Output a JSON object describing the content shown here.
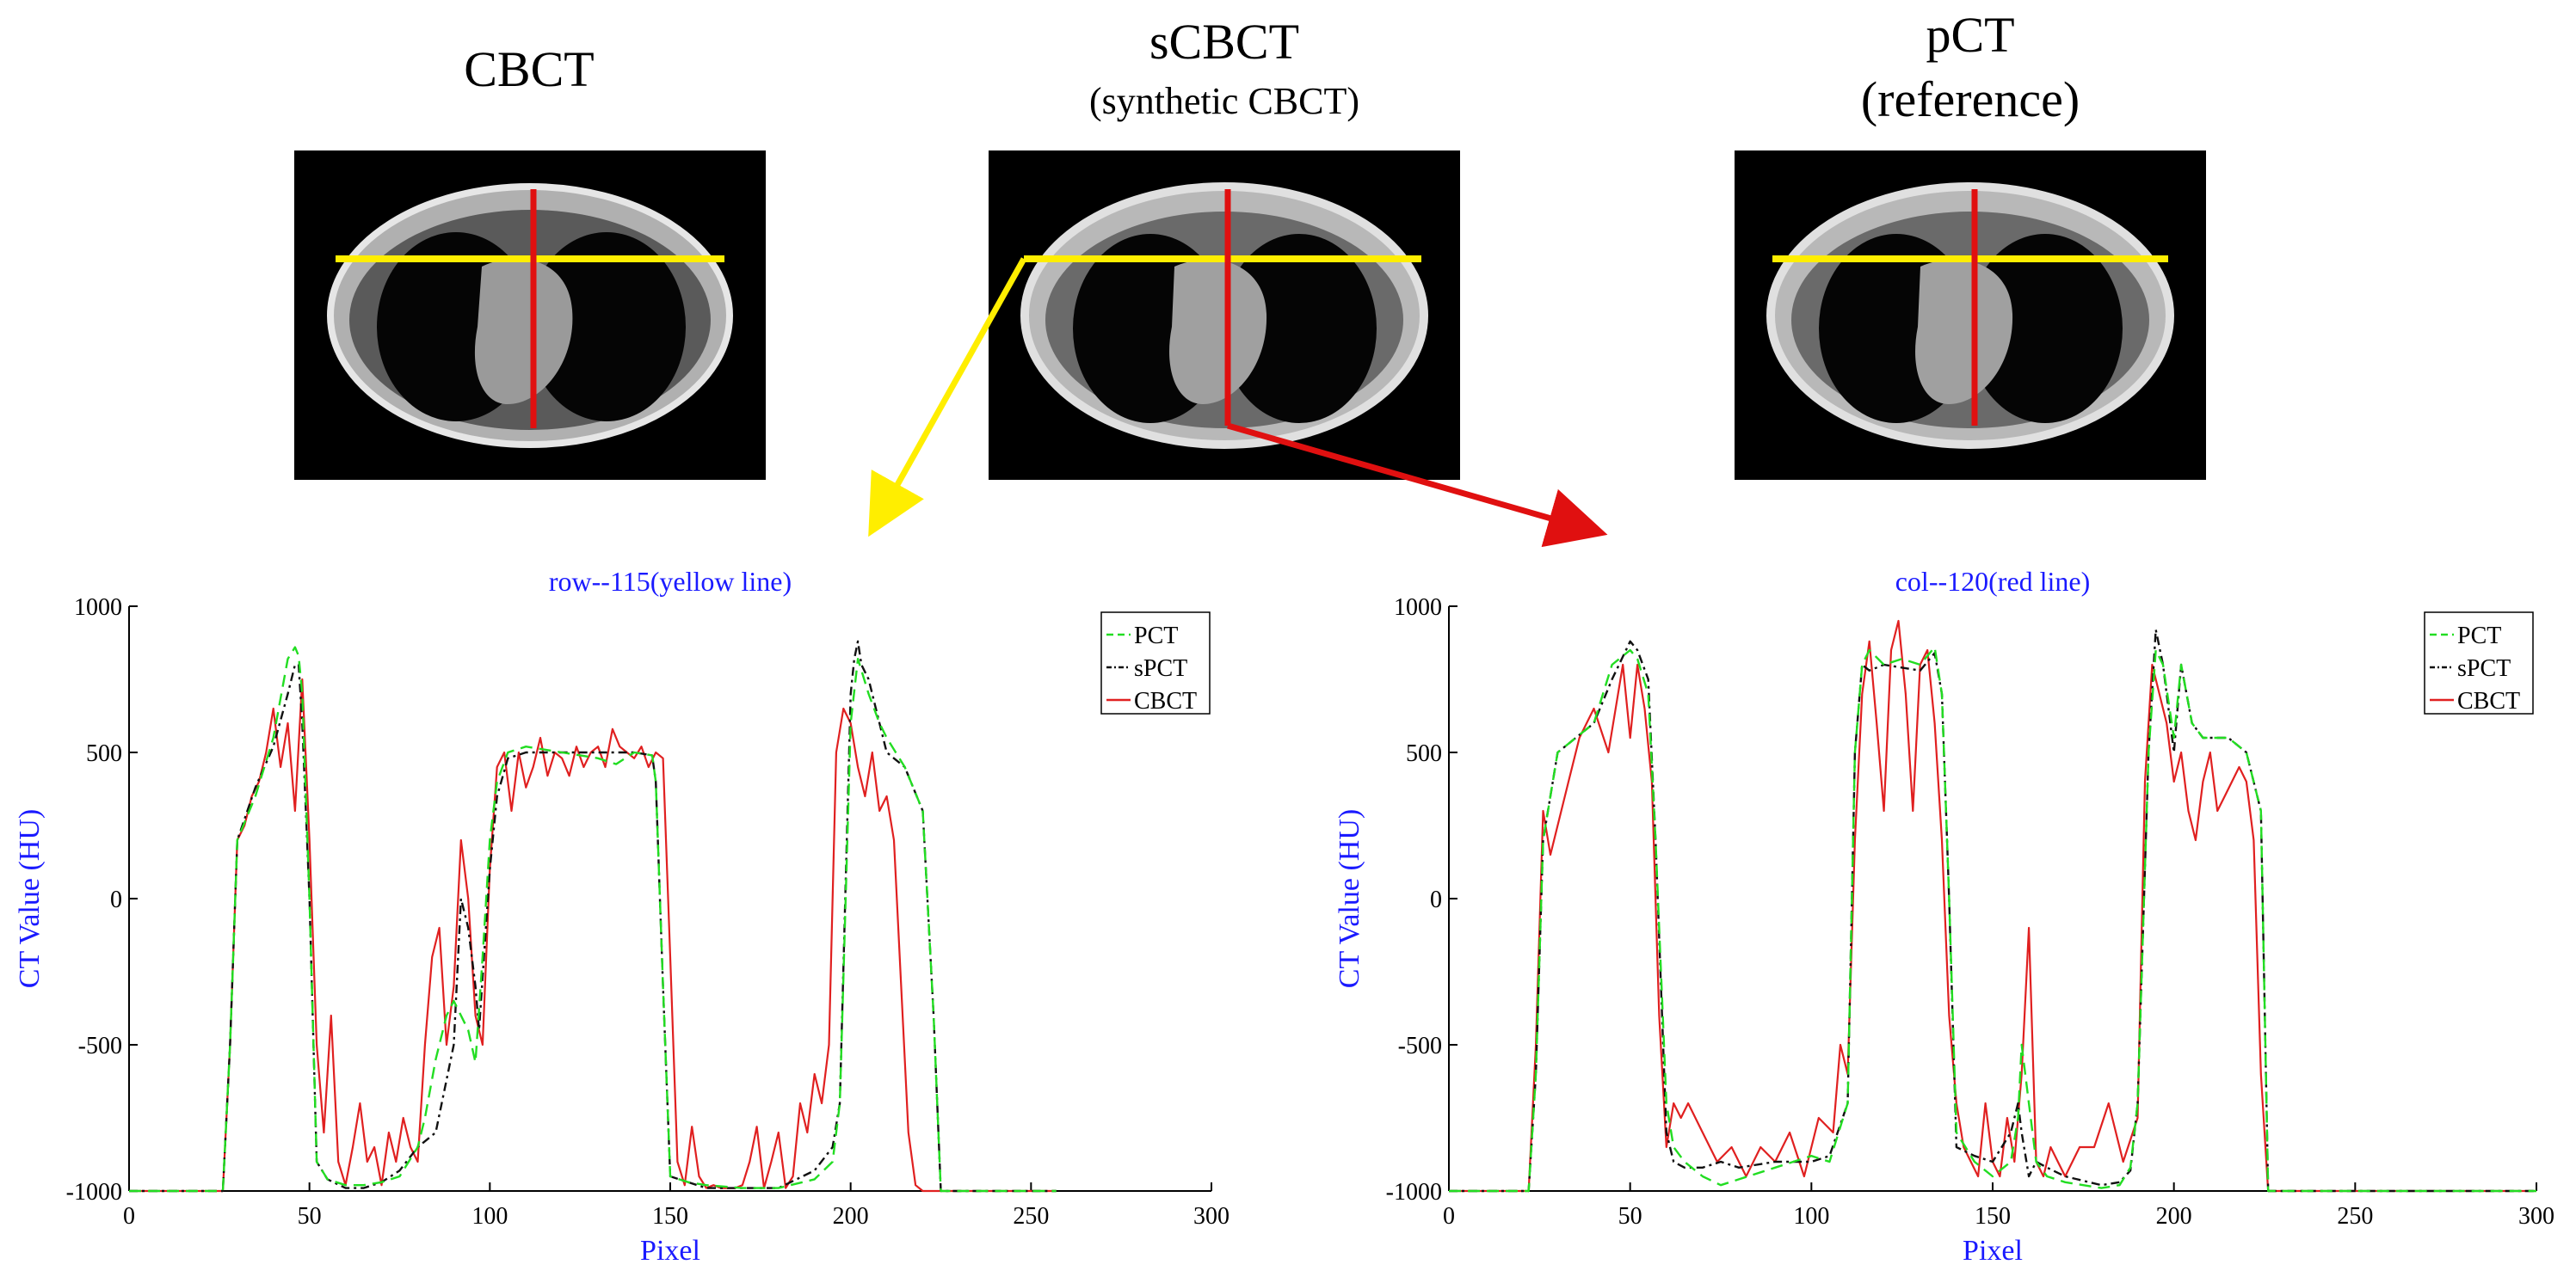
{
  "colors": {
    "axis": "#000000",
    "axis_label": "#1a1aff",
    "title": "#1a1aff",
    "pct": "#22dd22",
    "spct": "#111111",
    "cbct": "#e02020",
    "yellow_line": "#ffee00",
    "red_line": "#e01010"
  },
  "images": {
    "cbct": {
      "title": "CBCT",
      "subtitle": ""
    },
    "scbct": {
      "title": "sCBCT",
      "subtitle": "(synthetic CBCT)"
    },
    "pct": {
      "title": "pCT",
      "subtitle": "(reference)"
    }
  },
  "chart_data": [
    {
      "type": "line",
      "title": "row--115(yellow line)",
      "xlabel": "Pixel",
      "ylabel": "CT Value (HU)",
      "xlim": [
        0,
        300
      ],
      "ylim": [
        -1000,
        1000
      ],
      "xticks": [
        "0",
        "50",
        "100",
        "150",
        "200",
        "250",
        "300"
      ],
      "yticks": [
        "-1000",
        "-500",
        "0",
        "500",
        "1000"
      ],
      "legend": [
        "PCT",
        "sPCT",
        "CBCT"
      ],
      "legend_placement": "top-right",
      "series": [
        {
          "name": "PCT",
          "x": [
            0,
            26,
            28,
            30,
            35,
            40,
            44,
            46,
            47,
            48,
            50,
            52,
            55,
            60,
            65,
            70,
            75,
            80,
            82,
            85,
            88,
            90,
            94,
            96,
            98,
            100,
            102,
            105,
            110,
            120,
            130,
            135,
            140,
            145,
            146,
            148,
            150,
            155,
            160,
            170,
            180,
            190,
            195,
            197,
            200,
            202,
            205,
            208,
            210,
            215,
            220,
            223,
            225,
            230,
            257
          ],
          "y": [
            -1000,
            -1000,
            -500,
            200,
            350,
            550,
            820,
            860,
            830,
            700,
            0,
            -900,
            -960,
            -980,
            -980,
            -970,
            -950,
            -850,
            -750,
            -550,
            -400,
            -350,
            -450,
            -560,
            -200,
            200,
            400,
            500,
            520,
            500,
            480,
            460,
            500,
            490,
            400,
            -300,
            -950,
            -970,
            -980,
            -990,
            -990,
            -960,
            -900,
            -700,
            600,
            820,
            700,
            600,
            550,
            450,
            300,
            -400,
            -1000,
            -1000,
            -1000
          ]
        },
        {
          "name": "sPCT",
          "x": [
            0,
            26,
            28,
            30,
            35,
            40,
            44,
            46,
            47,
            48,
            50,
            52,
            55,
            60,
            65,
            70,
            75,
            80,
            85,
            90,
            92,
            94,
            96,
            97,
            100,
            102,
            105,
            110,
            120,
            130,
            140,
            145,
            146,
            148,
            150,
            155,
            160,
            170,
            180,
            190,
            195,
            197,
            200,
            201,
            202,
            203,
            205,
            208,
            210,
            215,
            220,
            223,
            225,
            230,
            257
          ],
          "y": [
            -1000,
            -1000,
            -500,
            200,
            380,
            520,
            700,
            800,
            800,
            600,
            0,
            -900,
            -960,
            -990,
            -990,
            -970,
            -930,
            -850,
            -800,
            -500,
            0,
            -100,
            -300,
            -450,
            100,
            350,
            480,
            500,
            500,
            500,
            500,
            490,
            400,
            -300,
            -950,
            -970,
            -990,
            -990,
            -990,
            -930,
            -850,
            -700,
            700,
            820,
            880,
            800,
            750,
            600,
            500,
            450,
            300,
            -400,
            -1000,
            -1000,
            -1000
          ]
        },
        {
          "name": "CBCT",
          "x": [
            0,
            26,
            28,
            30,
            32,
            34,
            36,
            38,
            40,
            42,
            44,
            46,
            48,
            50,
            52,
            54,
            56,
            58,
            60,
            62,
            64,
            66,
            68,
            70,
            72,
            74,
            76,
            78,
            80,
            82,
            84,
            86,
            88,
            90,
            92,
            94,
            96,
            98,
            100,
            102,
            104,
            106,
            108,
            110,
            112,
            114,
            116,
            118,
            120,
            122,
            124,
            126,
            128,
            130,
            132,
            134,
            136,
            138,
            140,
            142,
            144,
            146,
            148,
            150,
            152,
            154,
            156,
            158,
            160,
            162,
            164,
            166,
            168,
            170,
            172,
            174,
            176,
            178,
            180,
            182,
            184,
            186,
            188,
            190,
            192,
            194,
            196,
            198,
            200,
            202,
            204,
            206,
            208,
            210,
            212,
            214,
            216,
            218,
            220,
            222,
            224,
            226,
            230,
            257
          ],
          "y": [
            -1000,
            -1000,
            -500,
            200,
            250,
            350,
            400,
            500,
            650,
            450,
            600,
            300,
            750,
            200,
            -500,
            -800,
            -400,
            -900,
            -980,
            -850,
            -700,
            -900,
            -850,
            -980,
            -800,
            -900,
            -750,
            -850,
            -900,
            -500,
            -200,
            -100,
            -500,
            -300,
            200,
            0,
            -400,
            -500,
            100,
            450,
            500,
            300,
            500,
            380,
            450,
            550,
            420,
            500,
            480,
            420,
            520,
            450,
            500,
            520,
            450,
            580,
            520,
            500,
            480,
            520,
            450,
            500,
            480,
            -200,
            -900,
            -980,
            -780,
            -950,
            -990,
            -980,
            -990,
            -990,
            -990,
            -980,
            -900,
            -780,
            -990,
            -900,
            -800,
            -990,
            -950,
            -700,
            -800,
            -600,
            -700,
            -500,
            500,
            650,
            600,
            450,
            350,
            500,
            300,
            350,
            200,
            -300,
            -800,
            -980,
            -1000,
            -1000,
            -1000,
            -1000,
            -1000,
            -1000
          ]
        }
      ]
    },
    {
      "type": "line",
      "title": "col--120(red line)",
      "xlabel": "Pixel",
      "ylabel": "CT Value (HU)",
      "xlim": [
        0,
        300
      ],
      "ylim": [
        -1000,
        1000
      ],
      "xticks": [
        "0",
        "50",
        "100",
        "150",
        "200",
        "250",
        "300"
      ],
      "yticks": [
        "-1000",
        "-500",
        "0",
        "500",
        "1000"
      ],
      "legend": [
        "PCT",
        "sPCT",
        "CBCT"
      ],
      "legend_placement": "top-right",
      "series": [
        {
          "name": "PCT",
          "x": [
            0,
            22,
            24,
            26,
            30,
            35,
            40,
            45,
            50,
            52,
            55,
            57,
            60,
            62,
            65,
            70,
            75,
            80,
            90,
            100,
            105,
            110,
            112,
            114,
            116,
            120,
            125,
            130,
            134,
            136,
            138,
            140,
            145,
            150,
            155,
            157,
            158,
            160,
            162,
            165,
            170,
            180,
            185,
            188,
            190,
            193,
            195,
            197,
            200,
            202,
            205,
            208,
            210,
            215,
            220,
            224,
            226,
            230,
            300
          ],
          "y": [
            -1000,
            -1000,
            -600,
            200,
            500,
            550,
            600,
            800,
            850,
            820,
            700,
            200,
            -700,
            -850,
            -900,
            -950,
            -980,
            -960,
            -920,
            -880,
            -900,
            -700,
            500,
            800,
            850,
            800,
            820,
            800,
            860,
            700,
            0,
            -800,
            -900,
            -950,
            -900,
            -750,
            -500,
            -700,
            -900,
            -950,
            -970,
            -990,
            -980,
            -920,
            -700,
            500,
            850,
            800,
            550,
            800,
            600,
            550,
            550,
            550,
            500,
            300,
            -1000,
            -1000,
            -1000
          ]
        },
        {
          "name": "sPCT",
          "x": [
            0,
            22,
            24,
            26,
            30,
            35,
            40,
            45,
            50,
            52,
            55,
            57,
            60,
            62,
            65,
            70,
            75,
            80,
            90,
            100,
            105,
            110,
            112,
            114,
            116,
            120,
            125,
            130,
            134,
            136,
            138,
            140,
            145,
            150,
            155,
            157,
            158,
            160,
            162,
            165,
            170,
            180,
            185,
            188,
            190,
            193,
            195,
            197,
            200,
            202,
            205,
            208,
            210,
            215,
            220,
            224,
            226,
            230,
            300
          ],
          "y": [
            -1000,
            -1000,
            -600,
            200,
            500,
            550,
            600,
            750,
            880,
            850,
            750,
            200,
            -800,
            -900,
            -920,
            -920,
            -900,
            -920,
            -900,
            -900,
            -880,
            -700,
            500,
            800,
            780,
            800,
            790,
            780,
            840,
            700,
            0,
            -850,
            -880,
            -900,
            -800,
            -700,
            -800,
            -950,
            -900,
            -920,
            -950,
            -980,
            -970,
            -930,
            -700,
            500,
            920,
            800,
            500,
            800,
            600,
            550,
            550,
            550,
            500,
            300,
            -1000,
            -1000,
            -1000
          ]
        },
        {
          "name": "CBCT",
          "x": [
            0,
            22,
            24,
            26,
            28,
            30,
            33,
            36,
            40,
            44,
            48,
            50,
            52,
            54,
            56,
            58,
            60,
            62,
            64,
            66,
            70,
            74,
            78,
            82,
            86,
            90,
            94,
            98,
            102,
            106,
            108,
            110,
            112,
            114,
            116,
            118,
            120,
            122,
            124,
            126,
            128,
            130,
            132,
            134,
            136,
            138,
            140,
            142,
            144,
            146,
            148,
            150,
            152,
            154,
            156,
            158,
            160,
            162,
            164,
            166,
            168,
            170,
            174,
            178,
            182,
            186,
            190,
            192,
            194,
            196,
            198,
            200,
            202,
            204,
            206,
            208,
            210,
            212,
            214,
            216,
            218,
            220,
            222,
            224,
            226,
            230,
            300
          ],
          "y": [
            -1000,
            -1000,
            -500,
            300,
            150,
            250,
            400,
            550,
            650,
            500,
            800,
            550,
            800,
            650,
            400,
            -400,
            -850,
            -700,
            -750,
            -700,
            -800,
            -900,
            -850,
            -950,
            -850,
            -900,
            -800,
            -950,
            -750,
            -800,
            -500,
            -600,
            200,
            700,
            880,
            600,
            300,
            850,
            950,
            700,
            300,
            800,
            850,
            600,
            200,
            -400,
            -700,
            -850,
            -900,
            -950,
            -700,
            -900,
            -950,
            -750,
            -900,
            -600,
            -100,
            -900,
            -950,
            -850,
            -900,
            -950,
            -850,
            -850,
            -700,
            -900,
            -750,
            400,
            800,
            700,
            600,
            400,
            500,
            300,
            200,
            400,
            500,
            300,
            350,
            400,
            450,
            400,
            200,
            -600,
            -1000,
            -1000,
            -1000
          ]
        }
      ]
    }
  ]
}
